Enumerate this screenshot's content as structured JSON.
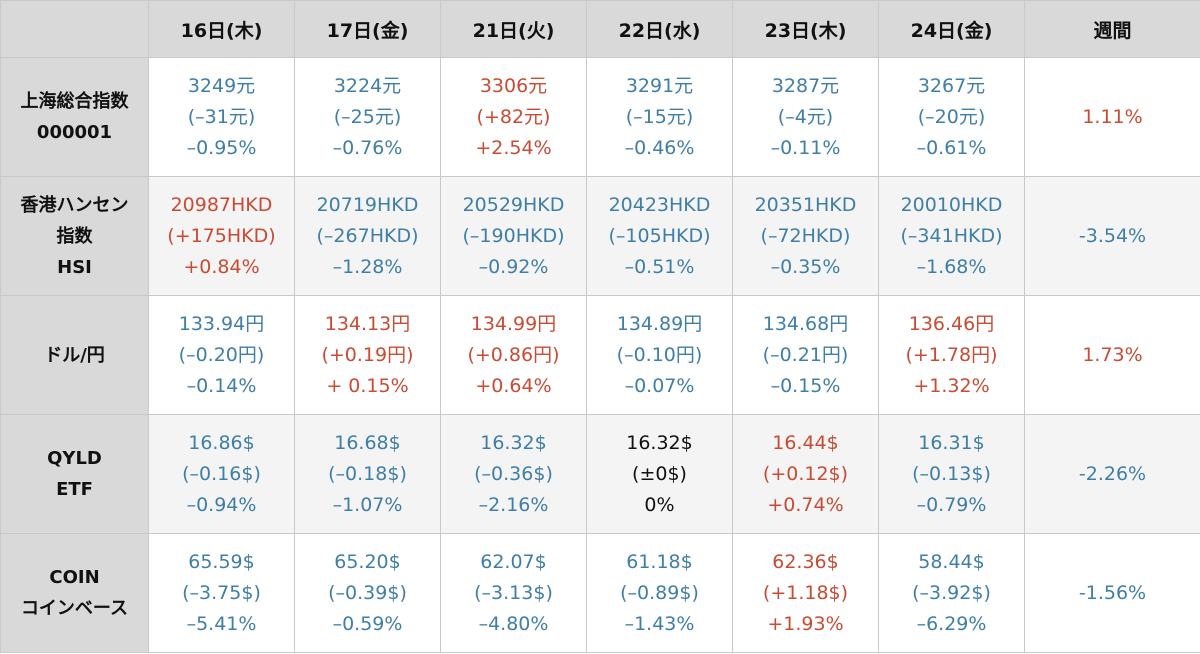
{
  "colors": {
    "down": "#3f7ea6",
    "up": "#c94b34",
    "flat": "#111111",
    "header_bg": "#d9d9d9"
  },
  "header": {
    "corner": "",
    "days": [
      "16日(木)",
      "17日(金)",
      "21日(火)",
      "22日(水)",
      "23日(木)",
      "24日(金)"
    ],
    "week": "週間"
  },
  "rows": [
    {
      "label": [
        "上海総合指数",
        "000001"
      ],
      "cells": [
        {
          "price": "3249元",
          "change": "(–31元)",
          "pct": "–0.95%",
          "dir": "down"
        },
        {
          "price": "3224元",
          "change": "(–25元)",
          "pct": "–0.76%",
          "dir": "down"
        },
        {
          "price": "3306元",
          "change": "(+82元)",
          "pct": "+2.54%",
          "dir": "up"
        },
        {
          "price": "3291元",
          "change": "(–15元)",
          "pct": "–0.46%",
          "dir": "down"
        },
        {
          "price": "3287元",
          "change": "(–4元)",
          "pct": "–0.11%",
          "dir": "down"
        },
        {
          "price": "3267元",
          "change": "(–20元)",
          "pct": "–0.61%",
          "dir": "down"
        }
      ],
      "week": {
        "value": "1.11%",
        "dir": "up"
      }
    },
    {
      "label": [
        "香港ハンセン",
        "指数",
        "HSI"
      ],
      "cells": [
        {
          "price": "20987HKD",
          "change": "(+175HKD)",
          "pct": "+0.84%",
          "dir": "up"
        },
        {
          "price": "20719HKD",
          "change": "(–267HKD)",
          "pct": "–1.28%",
          "dir": "down"
        },
        {
          "price": "20529HKD",
          "change": "(–190HKD)",
          "pct": "–0.92%",
          "dir": "down"
        },
        {
          "price": "20423HKD",
          "change": "(–105HKD)",
          "pct": "–0.51%",
          "dir": "down"
        },
        {
          "price": "20351HKD",
          "change": "(–72HKD)",
          "pct": "–0.35%",
          "dir": "down"
        },
        {
          "price": "20010HKD",
          "change": "(–341HKD)",
          "pct": "–1.68%",
          "dir": "down"
        }
      ],
      "week": {
        "value": "-3.54%",
        "dir": "down"
      }
    },
    {
      "label": [
        "ドル/円"
      ],
      "cells": [
        {
          "price": "133.94円",
          "change": "(–0.20円)",
          "pct": "–0.14%",
          "dir": "down"
        },
        {
          "price": "134.13円",
          "change": "(+0.19円)",
          "pct": "+ 0.15%",
          "dir": "up"
        },
        {
          "price": "134.99円",
          "change": "(+0.86円)",
          "pct": "+0.64%",
          "dir": "up"
        },
        {
          "price": "134.89円",
          "change": "(–0.10円)",
          "pct": "–0.07%",
          "dir": "down"
        },
        {
          "price": "134.68円",
          "change": "(–0.21円)",
          "pct": "–0.15%",
          "dir": "down"
        },
        {
          "price": "136.46円",
          "change": "(+1.78円)",
          "pct": "+1.32%",
          "dir": "up"
        }
      ],
      "week": {
        "value": "1.73%",
        "dir": "up"
      }
    },
    {
      "label": [
        "QYLD",
        "ETF"
      ],
      "cells": [
        {
          "price": "16.86$",
          "change": "(–0.16$)",
          "pct": "–0.94%",
          "dir": "down"
        },
        {
          "price": "16.68$",
          "change": "(–0.18$)",
          "pct": "–1.07%",
          "dir": "down"
        },
        {
          "price": "16.32$",
          "change": "(–0.36$)",
          "pct": "–2.16%",
          "dir": "down"
        },
        {
          "price": "16.32$",
          "change": "(±0$)",
          "pct": "0%",
          "dir": "flat"
        },
        {
          "price": "16.44$",
          "change": "(+0.12$)",
          "pct": "+0.74%",
          "dir": "up"
        },
        {
          "price": "16.31$",
          "change": "(–0.13$)",
          "pct": "–0.79%",
          "dir": "down"
        }
      ],
      "week": {
        "value": "-2.26%",
        "dir": "down"
      }
    },
    {
      "label": [
        "COIN",
        "コインベース"
      ],
      "cells": [
        {
          "price": "65.59$",
          "change": "(–3.75$)",
          "pct": "–5.41%",
          "dir": "down"
        },
        {
          "price": "65.20$",
          "change": "(–0.39$)",
          "pct": "–0.59%",
          "dir": "down"
        },
        {
          "price": "62.07$",
          "change": "(–3.13$)",
          "pct": "–4.80%",
          "dir": "down"
        },
        {
          "price": "61.18$",
          "change": "(–0.89$)",
          "pct": "–1.43%",
          "dir": "down"
        },
        {
          "price": "62.36$",
          "change": "(+1.18$)",
          "pct": "+1.93%",
          "dir": "up"
        },
        {
          "price": "58.44$",
          "change": "(–3.92$)",
          "pct": "–6.29%",
          "dir": "down"
        }
      ],
      "week": {
        "value": "-1.56%",
        "dir": "down"
      }
    }
  ]
}
